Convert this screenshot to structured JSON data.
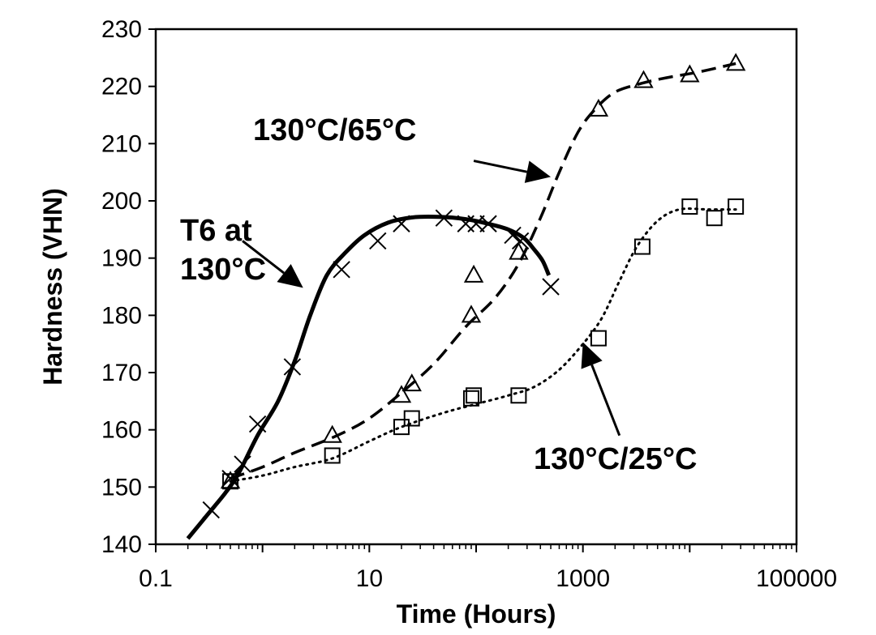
{
  "chart_data": {
    "type": "scatter",
    "xlabel": "Time (Hours)",
    "ylabel": "Hardness (VHN)",
    "xscale": "log",
    "xlim": [
      0.1,
      100000
    ],
    "ylim": [
      140,
      230
    ],
    "xticks": [
      "0.1",
      "10",
      "1000",
      "100000"
    ],
    "yticks": [
      "140",
      "150",
      "160",
      "170",
      "180",
      "190",
      "200",
      "210",
      "220",
      "230"
    ],
    "grid": false,
    "series": [
      {
        "name": "T6 at 130°C",
        "marker": "x",
        "line": "solid",
        "color": "#000000",
        "points": [
          [
            0.33,
            146
          ],
          [
            0.5,
            151.5
          ],
          [
            0.65,
            154
          ],
          [
            0.9,
            161
          ],
          [
            1.9,
            171
          ],
          [
            5.5,
            188
          ],
          [
            12,
            193
          ],
          [
            20,
            196
          ],
          [
            50,
            197
          ],
          [
            80,
            196
          ],
          [
            100,
            196
          ],
          [
            130,
            196
          ],
          [
            220,
            194
          ],
          [
            260,
            193
          ],
          [
            500,
            185
          ]
        ],
        "curve": [
          [
            0.2,
            141
          ],
          [
            0.3,
            145
          ],
          [
            0.45,
            149
          ],
          [
            0.6,
            152.5
          ],
          [
            0.9,
            159
          ],
          [
            1.4,
            165
          ],
          [
            2.0,
            172
          ],
          [
            2.8,
            180
          ],
          [
            4.0,
            187
          ],
          [
            6.0,
            191
          ],
          [
            9.0,
            194
          ],
          [
            15,
            196.2
          ],
          [
            25,
            197.1
          ],
          [
            45,
            197.2
          ],
          [
            80,
            196.8
          ],
          [
            130,
            196
          ],
          [
            200,
            195
          ],
          [
            280,
            193.5
          ],
          [
            350,
            191.5
          ],
          [
            420,
            189.5
          ],
          [
            480,
            187
          ]
        ]
      },
      {
        "name": "130°C/65°C",
        "marker": "triangle",
        "line": "dashed",
        "color": "#000000",
        "points": [
          [
            0.5,
            151
          ],
          [
            4.5,
            159
          ],
          [
            20,
            166
          ],
          [
            25,
            168
          ],
          [
            90,
            180
          ],
          [
            95,
            187
          ],
          [
            250,
            191
          ],
          [
            1400,
            216
          ],
          [
            3700,
            221
          ],
          [
            10000,
            222
          ],
          [
            27000,
            224
          ]
        ],
        "curve": [
          [
            0.5,
            151.5
          ],
          [
            1,
            153.5
          ],
          [
            2,
            156
          ],
          [
            5,
            159
          ],
          [
            10,
            162
          ],
          [
            20,
            166.5
          ],
          [
            40,
            171.5
          ],
          [
            80,
            178
          ],
          [
            150,
            183
          ],
          [
            250,
            189
          ],
          [
            400,
            197
          ],
          [
            600,
            205
          ],
          [
            900,
            212
          ],
          [
            1300,
            216
          ],
          [
            2000,
            219
          ],
          [
            3500,
            220.5
          ],
          [
            6000,
            221.5
          ],
          [
            12000,
            222.5
          ],
          [
            27000,
            224
          ]
        ]
      },
      {
        "name": "130°C/25°C",
        "marker": "square",
        "line": "dotted",
        "color": "#000000",
        "points": [
          [
            0.5,
            151
          ],
          [
            4.5,
            155.5
          ],
          [
            20,
            160.5
          ],
          [
            25,
            162
          ],
          [
            90,
            165.5
          ],
          [
            95,
            166
          ],
          [
            250,
            166
          ],
          [
            1400,
            176
          ],
          [
            3600,
            192
          ],
          [
            10000,
            199
          ],
          [
            17000,
            197
          ],
          [
            27000,
            199
          ]
        ],
        "curve": [
          [
            0.5,
            151
          ],
          [
            1,
            152
          ],
          [
            2,
            153.5
          ],
          [
            4.5,
            155
          ],
          [
            10,
            158
          ],
          [
            20,
            160.5
          ],
          [
            50,
            163
          ],
          [
            100,
            164.5
          ],
          [
            200,
            166
          ],
          [
            350,
            167.5
          ],
          [
            600,
            170.5
          ],
          [
            1000,
            175
          ],
          [
            1500,
            179.5
          ],
          [
            2200,
            186
          ],
          [
            3200,
            192
          ],
          [
            5000,
            196.5
          ],
          [
            8000,
            198.5
          ],
          [
            15000,
            198.5
          ],
          [
            27000,
            198.5
          ]
        ]
      }
    ],
    "annotations": [
      {
        "lines": [
          "T6 at",
          "130°C"
        ],
        "target_series": "T6 at 130°C",
        "arrow_from": [
          0.65,
          193
        ],
        "arrow_to": [
          2.4,
          184.8
        ]
      },
      {
        "lines": [
          "130°C/65°C"
        ],
        "target_series": "130°C/65°C",
        "arrow_from": [
          95,
          207
        ],
        "arrow_to": [
          500,
          204.2
        ]
      },
      {
        "lines": [
          "130°C/25°C"
        ],
        "target_series": "130°C/25°C",
        "arrow_from": [
          2200,
          159
        ],
        "arrow_to": [
          1000,
          175.3
        ]
      }
    ]
  }
}
